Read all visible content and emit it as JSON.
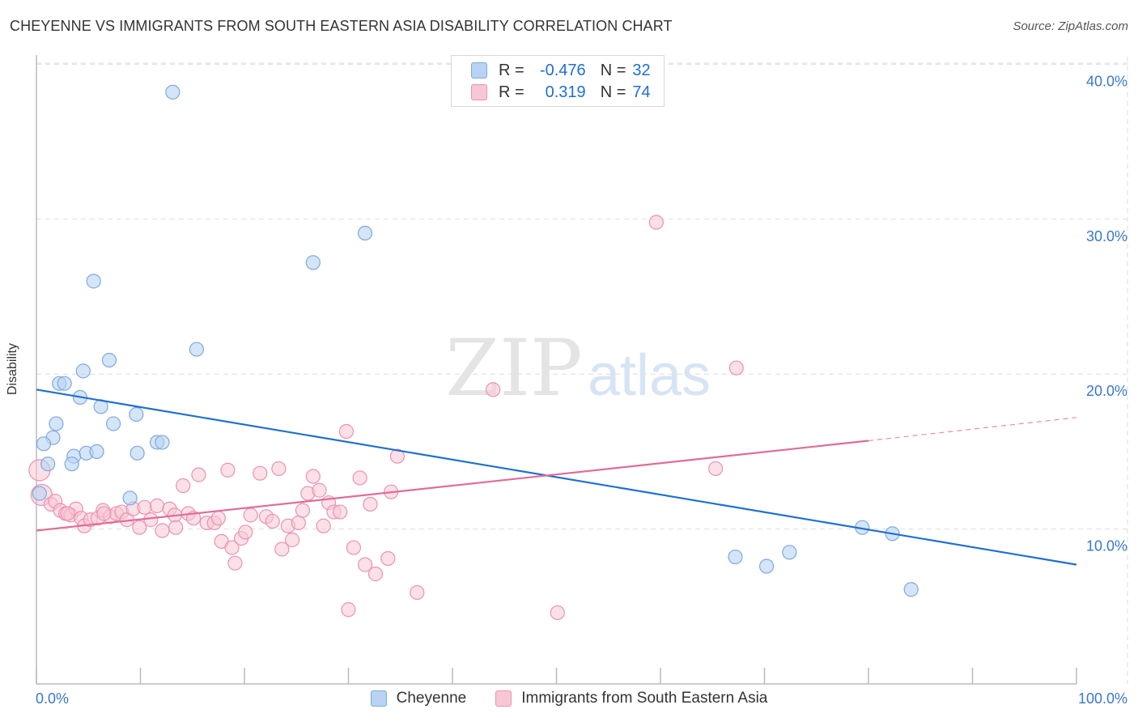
{
  "title": "CHEYENNE VS IMMIGRANTS FROM SOUTH EASTERN ASIA DISABILITY CORRELATION CHART",
  "source": "Source: ZipAtlas.com",
  "watermark": {
    "zip": "ZIP",
    "atlas": "atlas"
  },
  "legend_top": [
    {
      "r_label": "R =",
      "r_value": "-0.476",
      "n_label": "N =",
      "n_value": "32"
    },
    {
      "r_label": "R =",
      "r_value": "0.319",
      "n_label": "N =",
      "n_value": "74"
    }
  ],
  "bottom_legend": [
    "Cheyenne",
    "Immigrants from South Eastern Asia"
  ],
  "colors": {
    "cheyenne_fill": "#b8d3f3",
    "cheyenne_stroke": "#7fa9dc",
    "cheyenne_line": "#1f6fd0",
    "immigrants_fill": "#f8c7d6",
    "immigrants_stroke": "#ea92b0",
    "immigrants_line": "#e06c98",
    "axis_text": "#3a78c8",
    "grid": "#dddddd"
  },
  "chart_data": {
    "type": "scatter",
    "title": "CHEYENNE VS IMMIGRANTS FROM SOUTH EASTERN ASIA DISABILITY CORRELATION CHART",
    "xlabel": "",
    "ylabel": "Disability",
    "xlim": [
      0,
      100
    ],
    "ylim": [
      0,
      42
    ],
    "x_tick_labels": [
      "0.0%",
      "100.0%"
    ],
    "y_ticks": [
      10,
      20,
      30,
      40
    ],
    "y_tick_labels": [
      "10.0%",
      "20.0%",
      "30.0%",
      "40.0%"
    ],
    "grid": true,
    "legend_position": "top-center",
    "series": [
      {
        "name": "Cheyenne",
        "r": -0.476,
        "n": 32,
        "trend": {
          "x": [
            0,
            100
          ],
          "y": [
            19.0,
            7.7
          ]
        },
        "points": [
          [
            13.1,
            38.2
          ],
          [
            31.6,
            29.1
          ],
          [
            26.6,
            27.2
          ],
          [
            5.5,
            26.0
          ],
          [
            15.4,
            21.6
          ],
          [
            7.0,
            20.9
          ],
          [
            4.5,
            20.2
          ],
          [
            2.2,
            19.4
          ],
          [
            2.7,
            19.4
          ],
          [
            4.2,
            18.5
          ],
          [
            6.2,
            17.9
          ],
          [
            9.6,
            17.4
          ],
          [
            1.9,
            16.8
          ],
          [
            7.4,
            16.8
          ],
          [
            1.6,
            15.9
          ],
          [
            0.7,
            15.5
          ],
          [
            11.6,
            15.6
          ],
          [
            12.1,
            15.6
          ],
          [
            3.6,
            14.7
          ],
          [
            4.8,
            14.9
          ],
          [
            5.8,
            15.0
          ],
          [
            9.7,
            14.9
          ],
          [
            1.1,
            14.2
          ],
          [
            3.4,
            14.2
          ],
          [
            0.3,
            12.3
          ],
          [
            9.0,
            12.0
          ],
          [
            67.2,
            8.2
          ],
          [
            70.2,
            7.6
          ],
          [
            72.4,
            8.5
          ],
          [
            79.4,
            10.1
          ],
          [
            82.3,
            9.7
          ],
          [
            84.1,
            6.1
          ]
        ]
      },
      {
        "name": "Immigrants from South Eastern Asia",
        "r": 0.319,
        "n": 74,
        "trend": {
          "x": [
            0,
            80
          ],
          "y": [
            9.9,
            15.7
          ]
        },
        "trend_dashed": {
          "x": [
            80,
            100
          ],
          "y": [
            15.7,
            17.2
          ]
        },
        "points": [
          [
            0.3,
            13.8
          ],
          [
            0.5,
            12.2
          ],
          [
            1.4,
            11.6
          ],
          [
            1.8,
            11.8
          ],
          [
            2.3,
            11.2
          ],
          [
            2.8,
            11.0
          ],
          [
            3.3,
            10.9
          ],
          [
            3.8,
            11.3
          ],
          [
            4.3,
            10.7
          ],
          [
            4.6,
            10.2
          ],
          [
            5.2,
            10.6
          ],
          [
            5.9,
            10.7
          ],
          [
            6.4,
            11.2
          ],
          [
            7.1,
            10.8
          ],
          [
            7.7,
            11.0
          ],
          [
            8.2,
            11.1
          ],
          [
            8.7,
            10.6
          ],
          [
            9.3,
            11.3
          ],
          [
            9.9,
            10.1
          ],
          [
            10.4,
            11.4
          ],
          [
            11.0,
            10.6
          ],
          [
            11.6,
            11.5
          ],
          [
            12.1,
            9.9
          ],
          [
            12.8,
            11.3
          ],
          [
            13.3,
            10.9
          ],
          [
            14.1,
            12.8
          ],
          [
            14.6,
            11.0
          ],
          [
            15.1,
            10.7
          ],
          [
            15.6,
            13.5
          ],
          [
            16.4,
            10.4
          ],
          [
            17.1,
            10.4
          ],
          [
            17.5,
            10.7
          ],
          [
            17.8,
            9.2
          ],
          [
            18.4,
            13.8
          ],
          [
            18.8,
            8.8
          ],
          [
            19.1,
            7.8
          ],
          [
            19.7,
            9.4
          ],
          [
            20.1,
            9.8
          ],
          [
            20.6,
            10.9
          ],
          [
            21.5,
            13.6
          ],
          [
            22.1,
            10.8
          ],
          [
            22.7,
            10.5
          ],
          [
            23.3,
            13.9
          ],
          [
            23.6,
            8.7
          ],
          [
            24.2,
            10.2
          ],
          [
            24.6,
            9.3
          ],
          [
            25.2,
            10.4
          ],
          [
            25.6,
            11.2
          ],
          [
            26.1,
            12.3
          ],
          [
            26.6,
            13.4
          ],
          [
            27.2,
            12.5
          ],
          [
            27.6,
            10.2
          ],
          [
            28.1,
            11.7
          ],
          [
            28.6,
            11.1
          ],
          [
            29.2,
            11.1
          ],
          [
            29.8,
            16.3
          ],
          [
            30.5,
            8.8
          ],
          [
            31.1,
            13.3
          ],
          [
            31.6,
            7.7
          ],
          [
            32.1,
            11.6
          ],
          [
            32.6,
            7.1
          ],
          [
            34.1,
            12.4
          ],
          [
            33.8,
            8.1
          ],
          [
            34.7,
            14.7
          ],
          [
            36.6,
            5.9
          ],
          [
            30.0,
            4.8
          ],
          [
            43.9,
            19.0
          ],
          [
            59.6,
            29.8
          ],
          [
            67.3,
            20.4
          ],
          [
            65.3,
            13.9
          ],
          [
            50.1,
            4.6
          ],
          [
            13.4,
            10.1
          ],
          [
            3.0,
            11.0
          ],
          [
            6.5,
            11.0
          ]
        ]
      }
    ]
  }
}
